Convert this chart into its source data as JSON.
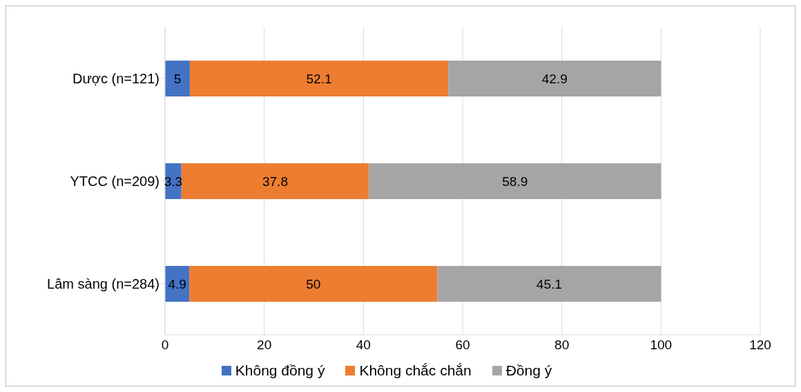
{
  "chart_data": {
    "type": "bar",
    "orientation": "horizontal",
    "stacked": true,
    "categories": [
      "Dược (n=121)",
      "YTCC (n=209)",
      "Lâm sàng (n=284)"
    ],
    "series": [
      {
        "name": "Không đồng ý",
        "color": "#4472c4",
        "values": [
          5,
          3.3,
          4.9
        ]
      },
      {
        "name": "Không chắc chắn",
        "color": "#ed7d31",
        "values": [
          52.1,
          37.8,
          50
        ]
      },
      {
        "name": "Đồng ý",
        "color": "#a5a5a5",
        "values": [
          42.9,
          58.9,
          45.1
        ]
      }
    ],
    "xlim": [
      0,
      120
    ],
    "xticks": [
      0,
      20,
      40,
      60,
      80,
      100,
      120
    ],
    "grid": "x",
    "legend": "bottom",
    "data_labels": true
  }
}
